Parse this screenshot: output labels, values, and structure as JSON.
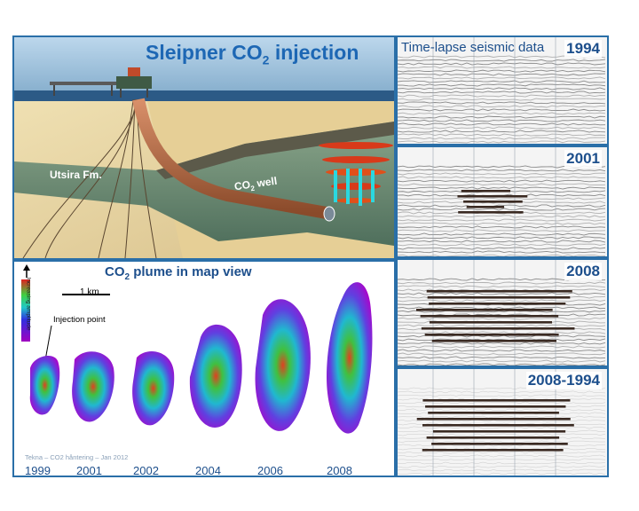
{
  "main": {
    "title": "Sleipner CO",
    "title_sub": "2",
    "title_tail": " injection",
    "formation_label": "Utsira Fm.",
    "well_label": "CO",
    "well_sub": "2",
    "well_tail": " well"
  },
  "map": {
    "title": "CO",
    "title_sub": "2",
    "title_tail": " plume in map view",
    "scale_label": "1 km",
    "injection_label": "Injection point",
    "amplitude_label": "Increasing amplitude",
    "credit": "Tekna – CO2 håntering – Jan 2012",
    "years": [
      "1999",
      "2001",
      "2002",
      "2004",
      "2006",
      "2008"
    ]
  },
  "seismic": {
    "title": "Time-lapse seismic data",
    "panels": [
      "1994",
      "2001",
      "2008",
      "2008-1994"
    ]
  },
  "colors": {
    "frame": "#2a6fa8",
    "title_blue": "#1d67b4",
    "label_blue": "#1d4f8c",
    "plume_low": "#b000c8",
    "plume_mid": "#2ad0d0",
    "plume_high": "#e23a1a"
  }
}
